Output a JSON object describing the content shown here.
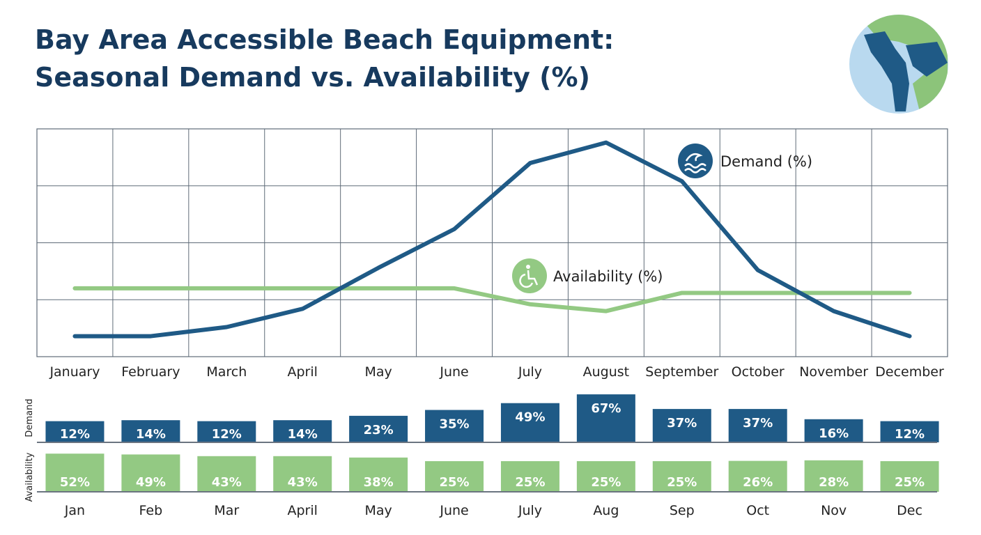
{
  "title_line1": "Bay Area Accessible Beach Equipment:",
  "title_line2": "Seasonal Demand vs. Availability (%)",
  "logo": {
    "icon": "bay-area-globe-map"
  },
  "colors": {
    "demand": "#1f5a86",
    "availability": "#93c983",
    "grid": "#5f6b78",
    "title": "#173a5e"
  },
  "chart_data": [
    {
      "type": "line",
      "categories": [
        "January",
        "February",
        "March",
        "April",
        "May",
        "June",
        "July",
        "August",
        "September",
        "October",
        "November",
        "December"
      ],
      "ylim": [
        0,
        100
      ],
      "grid": true,
      "y_ticks_shown": false,
      "series": [
        {
          "name": "Demand (%)",
          "icon": "wave-icon",
          "color": "#1f5a86",
          "values": [
            9,
            9,
            13,
            21,
            39,
            56,
            85,
            94,
            77,
            38,
            20,
            9
          ]
        },
        {
          "name": "Availability (%)",
          "icon": "wheelchair-icon",
          "color": "#93c983",
          "values": [
            30,
            30,
            30,
            30,
            30,
            30,
            23,
            20,
            28,
            28,
            28,
            28
          ]
        }
      ],
      "legend": "inline-labels"
    },
    {
      "type": "bar",
      "categories": [
        "Jan",
        "Feb",
        "Mar",
        "April",
        "May",
        "June",
        "July",
        "Aug",
        "Sep",
        "Oct",
        "Nov",
        "Dec"
      ],
      "series": [
        {
          "name": "Demand",
          "color": "#1f5a86",
          "values": [
            12,
            14,
            12,
            14,
            23,
            35,
            49,
            67,
            37,
            37,
            16,
            12
          ],
          "labels": [
            "12%",
            "14%",
            "12%",
            "14%",
            "23%",
            "35%",
            "49%",
            "67%",
            "37%",
            "37%",
            "16%",
            "12%"
          ]
        },
        {
          "name": "Availability",
          "color": "#93c983",
          "values": [
            52,
            49,
            43,
            43,
            38,
            25,
            25,
            25,
            25,
            26,
            28,
            25
          ],
          "labels": [
            "52%",
            "49%",
            "43%",
            "43%",
            "38%",
            "25%",
            "25%",
            "25%",
            "25%",
            "26%",
            "28%",
            "25%"
          ]
        }
      ]
    }
  ]
}
